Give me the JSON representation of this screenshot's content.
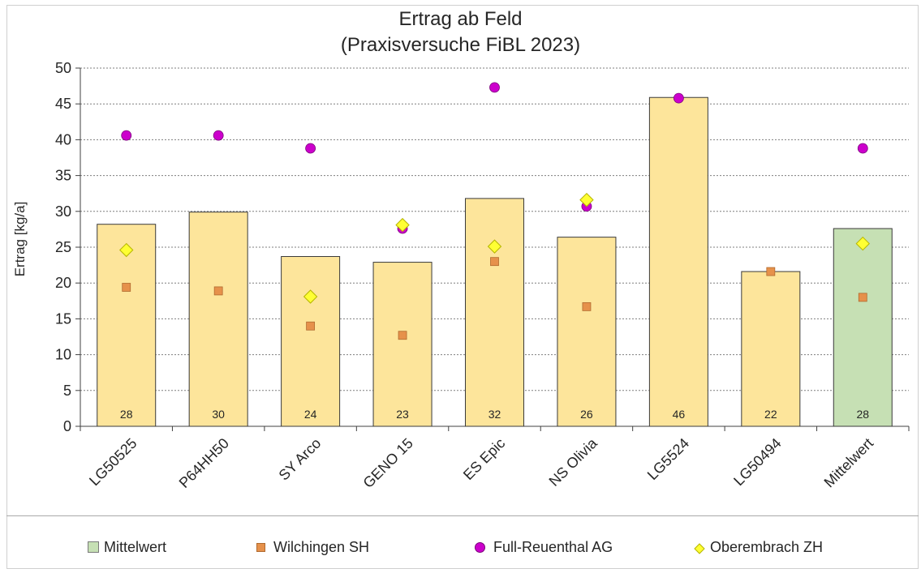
{
  "chart_data": {
    "type": "bar",
    "title": "Ertrag ab Feld",
    "subtitle": "(Praxisversuche FiBL 2023)",
    "ylabel": "Ertrag [kg/a]",
    "xlabel": "",
    "ylim": [
      0,
      50
    ],
    "yticks": [
      0,
      5,
      10,
      15,
      20,
      25,
      30,
      35,
      40,
      45,
      50
    ],
    "grid": true,
    "legend_position": "bottom",
    "categories": [
      "LG50525",
      "P64HH50",
      "SY Arco",
      "GENO 15",
      "ES Epic",
      "NS Olivia",
      "LG5524",
      "LG50494",
      "Mittelwert"
    ],
    "bars": {
      "values": [
        28.2,
        29.9,
        23.7,
        22.9,
        31.8,
        26.4,
        45.9,
        21.6,
        27.6
      ],
      "labels": [
        "28",
        "30",
        "24",
        "23",
        "32",
        "26",
        "46",
        "22",
        "28"
      ],
      "color": "#FDE59B",
      "highlight_color": "#C6E0B4"
    },
    "series": [
      {
        "name": "Wilchingen SH",
        "marker": "square",
        "color": "#E6914B",
        "values": [
          19.4,
          18.9,
          14.0,
          12.7,
          23.0,
          16.7,
          null,
          21.6,
          18.0
        ]
      },
      {
        "name": "Full-Reuenthal AG",
        "marker": "circle",
        "color": "#CC00CC",
        "values": [
          40.6,
          40.6,
          38.8,
          27.6,
          47.3,
          30.7,
          45.8,
          null,
          38.8
        ]
      },
      {
        "name": "Oberembrach ZH",
        "marker": "diamond",
        "color": "#FFFF33",
        "values": [
          24.6,
          null,
          18.1,
          28.1,
          25.1,
          31.6,
          null,
          null,
          25.5
        ]
      }
    ],
    "legend": [
      {
        "name": "Mittelwert",
        "marker": "square-box",
        "color": "#C6E0B4"
      },
      {
        "name": "Wilchingen SH",
        "marker": "square",
        "color": "#E6914B"
      },
      {
        "name": "Full-Reuenthal AG",
        "marker": "circle",
        "color": "#CC00CC"
      },
      {
        "name": "Oberembrach ZH",
        "marker": "diamond",
        "color": "#FFFF33"
      }
    ]
  }
}
